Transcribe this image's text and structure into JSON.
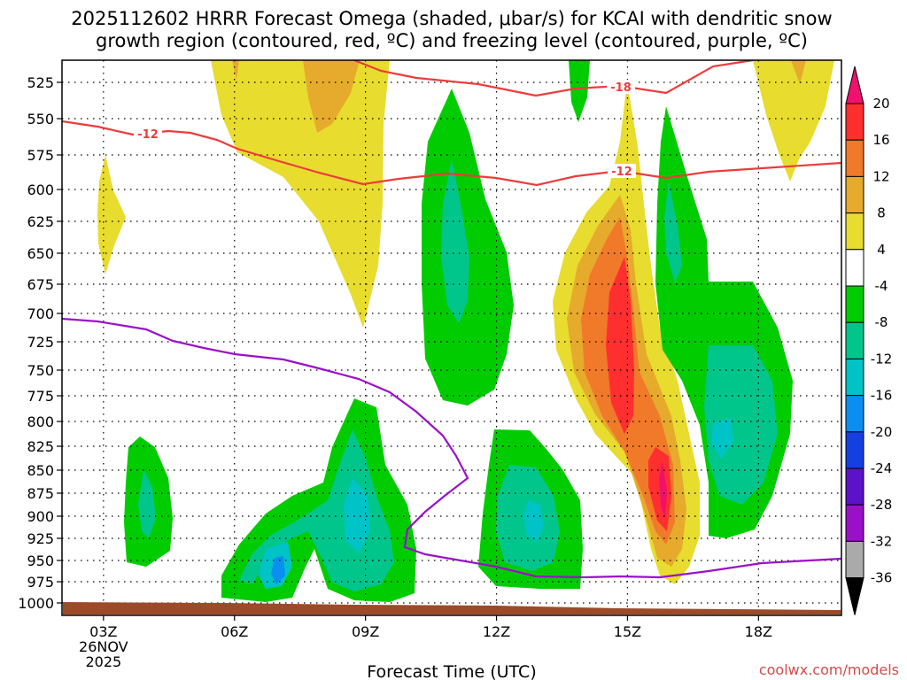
{
  "chart_data": {
    "type": "contour",
    "title_line1": "2025112602 HRRR Forecast Omega (shaded, μbar/s) for KCAI with dendritic snow",
    "title_line2": "growth region (contoured, red, ºC) and freezing level (contoured, purple, ºC)",
    "xlabel": "Forecast Time (UTC)",
    "x_ticks": [
      {
        "hour": 3,
        "label": "03Z",
        "sub1": "26NOV",
        "sub2": "2025"
      },
      {
        "hour": 6,
        "label": "06Z"
      },
      {
        "hour": 9,
        "label": "09Z"
      },
      {
        "hour": 12,
        "label": "12Z"
      },
      {
        "hour": 15,
        "label": "15Z"
      },
      {
        "hour": 18,
        "label": "18Z"
      }
    ],
    "xlim": [
      2.05,
      19.9
    ],
    "y_levels": [
      525,
      550,
      575,
      600,
      625,
      650,
      675,
      700,
      725,
      750,
      775,
      800,
      825,
      850,
      875,
      900,
      925,
      950,
      975,
      1000
    ],
    "colorbar": {
      "labels": [
        "20",
        "16",
        "12",
        "8",
        "4",
        "-4",
        "-8",
        "-12",
        "-16",
        "-20",
        "-24",
        "-28",
        "-32",
        "-36"
      ],
      "colors": [
        "#f0106e",
        "#ff2f2f",
        "#f07a2a",
        "#e6aa2d",
        "#e8dc2e",
        "#ffffff",
        "#00cc00",
        "#00c68c",
        "#00c3c8",
        "#0a8ff0",
        "#1440e0",
        "#5c12c8",
        "#9a10c8",
        "#aaaaaa",
        "#000000"
      ]
    },
    "dgz_contour_labels": [
      "-12",
      "-18",
      "-12"
    ],
    "terrain_color": "#9c4a28",
    "credit": "coolwx.com/models"
  }
}
